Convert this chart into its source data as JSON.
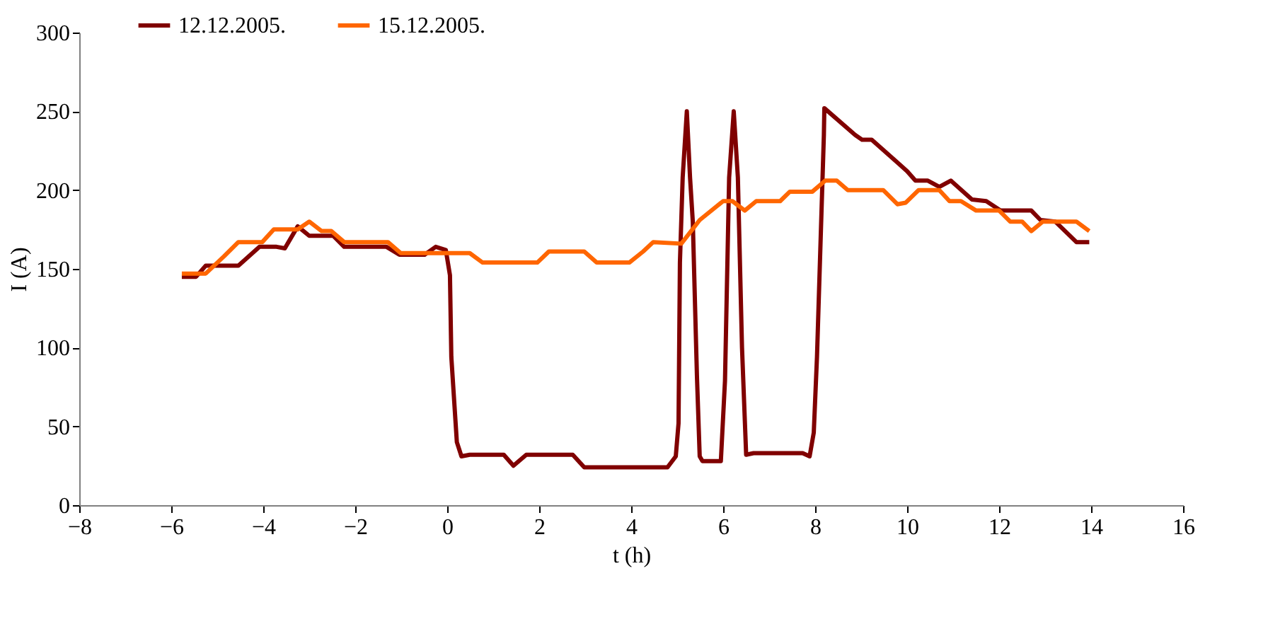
{
  "chart_data": {
    "type": "line",
    "xlabel": "t (h)",
    "ylabel": "I (A)",
    "xlim": [
      -8,
      16
    ],
    "xticks": [
      -8,
      -6,
      -4,
      -2,
      0,
      2,
      4,
      6,
      8,
      10,
      12,
      14,
      16
    ],
    "ylim": [
      0,
      300
    ],
    "yticks": [
      0,
      50,
      100,
      150,
      200,
      250,
      300
    ],
    "grid": false,
    "legend": "top left",
    "marker": "none",
    "line_style": "solid",
    "series": [
      {
        "name": "12.12.2005.",
        "color": "#800000",
        "x": [
          -5.77,
          -5.46,
          -5.25,
          -4.54,
          -4.08,
          -3.71,
          -3.53,
          -3.25,
          -3.0,
          -2.48,
          -2.24,
          -1.32,
          -1.04,
          -0.49,
          -0.25,
          -0.03,
          0.06,
          0.09,
          0.21,
          0.31,
          0.49,
          1.23,
          1.44,
          1.72,
          2.73,
          2.98,
          4.79,
          4.97,
          5.03,
          5.06,
          5.12,
          5.21,
          5.28,
          5.34,
          5.43,
          5.49,
          5.55,
          5.95,
          6.04,
          6.13,
          6.23,
          6.32,
          6.41,
          6.5,
          6.66,
          7.73,
          7.88,
          7.97,
          8.04,
          8.19,
          8.2,
          8.87,
          9.02,
          9.23,
          10.0,
          10.18,
          10.45,
          10.7,
          10.95,
          11.41,
          11.72,
          12.03,
          12.7,
          12.9,
          13.22,
          13.68,
          13.96
        ],
        "values": [
          145,
          145,
          152,
          152,
          164,
          164,
          163,
          177,
          171,
          171,
          164,
          164,
          159,
          159,
          164,
          162,
          146,
          94,
          40,
          31,
          32,
          32,
          25,
          32,
          32,
          24,
          24,
          31,
          52,
          154,
          208,
          250,
          208,
          180,
          82,
          31,
          28,
          28,
          79,
          208,
          250,
          208,
          100,
          32,
          33,
          33,
          31,
          46,
          94,
          235,
          252,
          235,
          232,
          232,
          212,
          206,
          206,
          202,
          206,
          194,
          193,
          187,
          187,
          181,
          180,
          167,
          167
        ]
      },
      {
        "name": "15.12.2005.",
        "color": "#ff6600",
        "x": [
          -5.77,
          -5.25,
          -4.85,
          -4.54,
          -4.02,
          -3.77,
          -3.25,
          -3.0,
          -2.73,
          -2.52,
          -2.24,
          -1.29,
          -1.01,
          0.49,
          0.77,
          1.96,
          2.21,
          2.98,
          3.25,
          3.96,
          4.26,
          4.48,
          5.09,
          5.49,
          6.0,
          6.2,
          6.47,
          6.72,
          7.24,
          7.45,
          7.94,
          8.22,
          8.47,
          8.71,
          9.48,
          9.79,
          9.97,
          10.25,
          10.7,
          10.92,
          11.17,
          11.5,
          12.0,
          12.24,
          12.5,
          12.7,
          12.95,
          13.68,
          13.96
        ],
        "values": [
          147,
          147,
          158,
          167,
          167,
          175,
          175,
          180,
          174,
          174,
          167,
          167,
          160,
          160,
          154,
          154,
          161,
          161,
          154,
          154,
          161,
          167,
          166,
          181,
          193,
          193,
          187,
          193,
          193,
          199,
          199,
          206,
          206,
          200,
          200,
          191,
          192,
          200,
          200,
          193,
          193,
          187,
          187,
          180,
          180,
          174,
          180,
          180,
          174
        ]
      }
    ]
  }
}
